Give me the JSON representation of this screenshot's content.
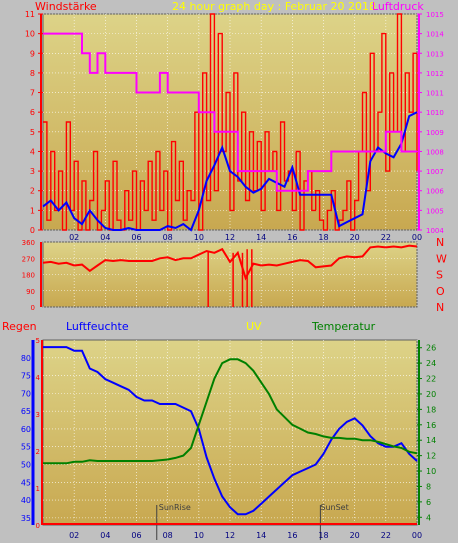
{
  "colors": {
    "background": "#c0c0c0",
    "plot_top": "#ddd388",
    "plot_bottom": "#c8a850",
    "wind": "#ff0000",
    "wind_avg": "#0000ff",
    "pressure": "#ff00ff",
    "direction": "#ff0000",
    "rain": "#ff0000",
    "humidity": "#0000ff",
    "uv": "#ffff00",
    "temperature": "#008000"
  },
  "chart_data": [
    {
      "type": "line",
      "title": "24 hour graph day : Februar 20 2018",
      "left_label": "Windstärke",
      "right_label": "Luftdruck",
      "x_ticks": [
        "02",
        "04",
        "06",
        "08",
        "10",
        "12",
        "14",
        "16",
        "18",
        "20",
        "22",
        "00"
      ],
      "y_left_ticks": [
        "0",
        "1",
        "2",
        "3",
        "4",
        "5",
        "6",
        "7",
        "8",
        "9",
        "10",
        "11"
      ],
      "y_right_ticks": [
        "1004",
        "1005",
        "1006",
        "1007",
        "1008",
        "1009",
        "1010",
        "1011",
        "1012",
        "1013",
        "1014",
        "1015"
      ],
      "ylim_left": [
        0,
        11
      ],
      "ylim_right": [
        1004,
        1015
      ],
      "xlim": [
        0,
        24
      ],
      "series": [
        {
          "axis": "left",
          "x": [
            0,
            0.5,
            1,
            1.5,
            2,
            2.5,
            3,
            3.5,
            4,
            4.5,
            5,
            5.5,
            6,
            6.5,
            7,
            7.5,
            8,
            8.5,
            9,
            9.5,
            10,
            10.5,
            11,
            11.5,
            12,
            12.5,
            13,
            13.5,
            14,
            14.5,
            15,
            15.5,
            16,
            16.5,
            17,
            17.5,
            18,
            18.5,
            19,
            19.5,
            20,
            20.5,
            21,
            21.5,
            22,
            22.5,
            23,
            23.5,
            24
          ],
          "values": [
            1.2,
            1.5,
            1.0,
            1.4,
            0.6,
            0.3,
            1.0,
            0.5,
            0.1,
            0,
            0,
            0.1,
            0,
            0,
            0,
            0,
            0.2,
            0.1,
            0.3,
            0,
            1.0,
            2.5,
            3.3,
            4.2,
            3.0,
            2.7,
            2.2,
            1.9,
            2.1,
            2.6,
            2.4,
            2.2,
            3.2,
            1.8,
            1.8,
            1.8,
            1.8,
            1.8,
            0.2,
            0.4,
            0.6,
            0.8,
            3.5,
            4.2,
            3.9,
            3.7,
            4.4,
            5.8,
            6.0
          ]
        },
        {
          "axis": "left",
          "x": [
            0,
            0.25,
            0.5,
            0.75,
            1,
            1.25,
            1.5,
            1.75,
            2,
            2.25,
            2.5,
            2.75,
            3,
            3.25,
            3.5,
            3.75,
            4,
            4.25,
            4.5,
            4.75,
            5,
            5.25,
            5.5,
            5.75,
            6,
            6.25,
            6.5,
            6.75,
            7,
            7.25,
            7.5,
            7.75,
            8,
            8.25,
            8.5,
            8.75,
            9,
            9.25,
            9.5,
            9.75,
            10,
            10.25,
            10.5,
            10.75,
            11,
            11.25,
            11.5,
            11.75,
            12,
            12.25,
            12.5,
            12.75,
            13,
            13.25,
            13.5,
            13.75,
            14,
            14.25,
            14.5,
            14.75,
            15,
            15.25,
            15.5,
            15.75,
            16,
            16.25,
            16.5,
            16.75,
            17,
            17.25,
            17.5,
            17.75,
            18,
            18.25,
            18.5,
            18.75,
            19,
            19.25,
            19.5,
            19.75,
            20,
            20.25,
            20.5,
            20.75,
            21,
            21.25,
            21.5,
            21.75,
            22,
            22.25,
            22.5,
            22.75,
            23,
            23.25,
            23.5,
            23.75,
            24
          ],
          "values": [
            5.5,
            0.5,
            4,
            1,
            3,
            0,
            5.5,
            1,
            3.5,
            0,
            2.5,
            0,
            1.5,
            4,
            0,
            1,
            2.5,
            0,
            3.5,
            0.5,
            0,
            2,
            0.5,
            3,
            0,
            2.5,
            1,
            3.5,
            0.5,
            4,
            1,
            3,
            0,
            4.5,
            1.5,
            3.5,
            0.5,
            2,
            1.5,
            6,
            0,
            8,
            1.5,
            11,
            2,
            10,
            4,
            7,
            1,
            8,
            2.5,
            6,
            1.5,
            5,
            2,
            4.5,
            1,
            5,
            3,
            4,
            1,
            5.5,
            2.5,
            3,
            1,
            4,
            0,
            2.5,
            3,
            1,
            2,
            0.5,
            0,
            1,
            2,
            0,
            0.5,
            1,
            2.5,
            0,
            1.5,
            4,
            7,
            2,
            9,
            4,
            6,
            10,
            3,
            8,
            5,
            11,
            4,
            8,
            6,
            9,
            3
          ]
        },
        {
          "axis": "right",
          "x": [
            0,
            1.5,
            2.5,
            3,
            3.5,
            4,
            4.5,
            5,
            5.5,
            6,
            6.5,
            7,
            7.5,
            8,
            8.5,
            9,
            9.5,
            10,
            10.5,
            11,
            11.5,
            12,
            12.5,
            13,
            14,
            15,
            16,
            17,
            18,
            18.5,
            19,
            20,
            21,
            22,
            23,
            24
          ],
          "values": [
            1014,
            1014,
            1013,
            1012,
            1013,
            1012,
            1012,
            1012,
            1012,
            1011,
            1011,
            1011,
            1012,
            1011,
            1011,
            1011,
            1011,
            1010,
            1010,
            1009,
            1009,
            1009,
            1007,
            1007,
            1007,
            1006,
            1006,
            1007,
            1007,
            1008,
            1008,
            1008,
            1008,
            1009,
            1008,
            1008
          ]
        }
      ]
    },
    {
      "type": "line",
      "right_label": "N W S O N",
      "compass": [
        "N",
        "W",
        "S",
        "O",
        "N"
      ],
      "y_left_ticks": [
        "0",
        "90",
        "180",
        "270",
        "360"
      ],
      "ylim": [
        0,
        360
      ],
      "xlim": [
        0,
        24
      ],
      "series": [
        {
          "x": [
            0,
            0.5,
            1,
            1.5,
            2,
            2.5,
            3,
            3.5,
            4,
            4.5,
            5,
            5.5,
            6,
            6.5,
            7,
            7.5,
            8,
            8.5,
            9,
            9.5,
            10,
            10.5,
            11,
            11.5,
            12,
            12.5,
            13,
            13.5,
            14,
            14.5,
            15,
            15.5,
            16,
            16.5,
            17,
            17.5,
            18,
            18.5,
            19,
            19.5,
            20,
            20.5,
            21,
            21.5,
            22,
            22.5,
            23,
            23.5,
            24
          ],
          "values": [
            245,
            250,
            240,
            245,
            230,
            235,
            200,
            230,
            260,
            255,
            260,
            255,
            255,
            255,
            255,
            270,
            275,
            260,
            270,
            270,
            290,
            310,
            300,
            320,
            250,
            300,
            160,
            240,
            230,
            235,
            230,
            240,
            250,
            260,
            255,
            220,
            225,
            230,
            270,
            280,
            275,
            280,
            330,
            335,
            330,
            335,
            330,
            340,
            335
          ]
        }
      ]
    },
    {
      "type": "line",
      "labels": [
        "Regen",
        "Luftfeuchte",
        "UV",
        "Temperatur"
      ],
      "annotations": [
        "SunRise",
        "SunSet"
      ],
      "x_ticks": [
        "02",
        "04",
        "06",
        "08",
        "10",
        "12",
        "14",
        "16",
        "18",
        "20",
        "22",
        "00"
      ],
      "y_rain_ticks": [
        "0",
        "1",
        "2",
        "3",
        "4",
        "5"
      ],
      "y_humidity_ticks": [
        "35",
        "40",
        "45",
        "50",
        "55",
        "60",
        "65",
        "70",
        "75",
        "80"
      ],
      "y_temp_ticks": [
        "4",
        "6",
        "8",
        "10",
        "12",
        "14",
        "16",
        "18",
        "20",
        "22",
        "24",
        "26"
      ],
      "ylim_humidity": [
        33,
        85
      ],
      "ylim_temp": [
        3,
        27
      ],
      "xlim": [
        0,
        24
      ],
      "series": [
        {
          "name": "Luftfeuchte",
          "x": [
            0,
            0.5,
            1,
            1.5,
            2,
            2.5,
            3,
            3.5,
            4,
            4.5,
            5,
            5.5,
            6,
            6.5,
            7,
            7.5,
            8,
            8.5,
            9,
            9.5,
            10,
            10.5,
            11,
            11.5,
            12,
            12.5,
            13,
            13.5,
            14,
            14.5,
            15,
            15.5,
            16,
            16.5,
            17,
            17.5,
            18,
            18.5,
            19,
            19.5,
            20,
            20.5,
            21,
            21.5,
            22,
            22.5,
            23,
            23.5,
            24
          ],
          "values": [
            83,
            83,
            83,
            83,
            82,
            82,
            77,
            76,
            74,
            73,
            72,
            71,
            69,
            68,
            68,
            67,
            67,
            67,
            66,
            65,
            60,
            52,
            46,
            41,
            38,
            36,
            36,
            37,
            39,
            41,
            43,
            45,
            47,
            48,
            49,
            50,
            53,
            57,
            60,
            62,
            63,
            61,
            58,
            56,
            55,
            55,
            56,
            53,
            51
          ]
        },
        {
          "name": "Temperatur",
          "x": [
            0,
            0.5,
            1,
            1.5,
            2,
            2.5,
            3,
            3.5,
            4,
            4.5,
            5,
            5.5,
            6,
            6.5,
            7,
            7.5,
            8,
            8.5,
            9,
            9.5,
            10,
            10.5,
            11,
            11.5,
            12,
            12.5,
            13,
            13.5,
            14,
            14.5,
            15,
            15.5,
            16,
            16.5,
            17,
            17.5,
            18,
            18.5,
            19,
            19.5,
            20,
            20.5,
            21,
            21.5,
            22,
            22.5,
            23,
            23.5,
            24
          ],
          "values": [
            11,
            11,
            11,
            11,
            11.2,
            11.2,
            11.4,
            11.3,
            11.3,
            11.3,
            11.3,
            11.3,
            11.3,
            11.3,
            11.3,
            11.4,
            11.5,
            11.7,
            12,
            13,
            16,
            19,
            22,
            24,
            24.5,
            24.5,
            24,
            23,
            21.5,
            20,
            18,
            17,
            16,
            15.5,
            15,
            14.8,
            14.5,
            14.3,
            14.3,
            14.2,
            14.2,
            14,
            14,
            13.8,
            13.5,
            13.2,
            13,
            12.5,
            12.3
          ]
        },
        {
          "name": "Regen",
          "x": [
            0,
            24
          ],
          "values": [
            0,
            0
          ]
        }
      ]
    }
  ]
}
